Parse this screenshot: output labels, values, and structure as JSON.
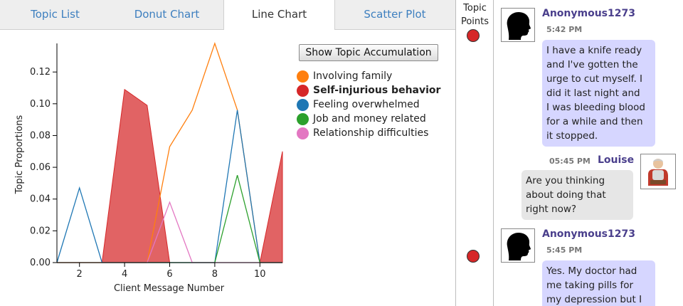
{
  "tabs": [
    {
      "label": "Topic List"
    },
    {
      "label": "Donut Chart"
    },
    {
      "label": "Line Chart"
    },
    {
      "label": "Scatter Plot"
    }
  ],
  "active_tab": "Line Chart",
  "accumulation_button": "Show Topic Accumulation",
  "legend": [
    {
      "label": "Involving family",
      "color": "#ff7f0e",
      "bold": false
    },
    {
      "label": "Self-injurious behavior",
      "color": "#d62728",
      "bold": true
    },
    {
      "label": "Feeling overwhelmed",
      "color": "#1f77b4",
      "bold": false
    },
    {
      "label": "Job and money related",
      "color": "#2ca02c",
      "bold": false
    },
    {
      "label": "Relationship difficulties",
      "color": "#e377c2",
      "bold": false
    }
  ],
  "chart_data": {
    "type": "line",
    "xlabel": "Client Message Number",
    "ylabel": "Topic Proportions",
    "xlim": [
      1,
      11
    ],
    "ylim": [
      0,
      0.138
    ],
    "xticks": [
      2,
      4,
      6,
      8,
      10
    ],
    "yticks": [
      0.0,
      0.02,
      0.04,
      0.06,
      0.08,
      0.1,
      0.12
    ],
    "ytick_labels": [
      "0.00",
      "0.02",
      "0.04",
      "0.06",
      "0.08",
      "0.10",
      "0.12"
    ],
    "series": [
      {
        "name": "Self-injurious behavior",
        "color": "#d62728",
        "area": true,
        "x": [
          1,
          2,
          3,
          4,
          5,
          6,
          7,
          8,
          9,
          10,
          11
        ],
        "y": [
          0,
          0,
          0,
          0.109,
          0.099,
          0,
          0,
          0,
          0,
          0,
          0.07
        ]
      },
      {
        "name": "Involving family",
        "color": "#ff7f0e",
        "x": [
          1,
          2,
          3,
          4,
          5,
          6,
          7,
          8,
          9,
          10,
          11
        ],
        "y": [
          0,
          0,
          0,
          0,
          0,
          0.073,
          0.096,
          0.138,
          0.096,
          0,
          0
        ]
      },
      {
        "name": "Feeling overwhelmed",
        "color": "#1f77b4",
        "x": [
          1,
          2,
          3,
          4,
          5,
          6,
          7,
          8,
          9,
          10,
          11
        ],
        "y": [
          0,
          0.047,
          0,
          0,
          0,
          0,
          0,
          0,
          0.096,
          0,
          0
        ]
      },
      {
        "name": "Job and money related",
        "color": "#2ca02c",
        "x": [
          1,
          2,
          3,
          4,
          5,
          6,
          7,
          8,
          9,
          10,
          11
        ],
        "y": [
          0,
          0,
          0,
          0,
          0,
          0,
          0,
          0,
          0.055,
          0,
          0
        ]
      },
      {
        "name": "Relationship difficulties",
        "color": "#e377c2",
        "x": [
          1,
          2,
          3,
          4,
          5,
          6,
          7,
          8,
          9,
          10,
          11
        ],
        "y": [
          0,
          0,
          0,
          0,
          0,
          0.038,
          0,
          0,
          0,
          0,
          0
        ]
      }
    ]
  },
  "topic_points": {
    "header": [
      "Topic",
      "Points"
    ],
    "color": "#d62728"
  },
  "messages": [
    {
      "role": "client",
      "user": "Anonymous1273",
      "time": "5:42 PM",
      "lines": [
        "I have a knife ready",
        "and I've gotten the",
        "urge to cut myself. I",
        "did it last night and",
        "I was bleeding blood",
        "for a while and then",
        "it stopped."
      ]
    },
    {
      "role": "counselor",
      "user": "Louise",
      "time": "05:45 PM",
      "lines": [
        "Are you thinking",
        "about doing that",
        "right now?"
      ]
    },
    {
      "role": "client",
      "user": "Anonymous1273",
      "time": "5:45 PM",
      "lines": [
        "Yes. My doctor had",
        "me taking pills for",
        "my depression but I"
      ]
    }
  ],
  "icons": {
    "client_avatar": "person-silhouette-icon",
    "counselor_avatar": "grandma-avatar-icon"
  }
}
